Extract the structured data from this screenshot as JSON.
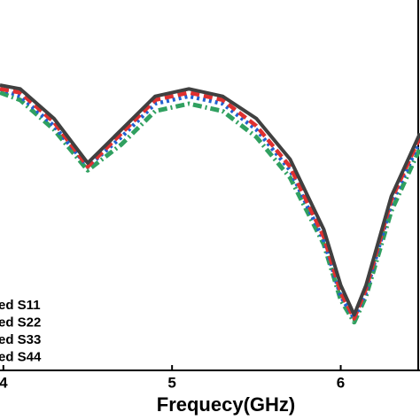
{
  "chart_data": {
    "type": "line",
    "x_label": "Frequecy(GHz)",
    "xlim": [
      3.98,
      6.47
    ],
    "xticks": [
      4,
      5,
      6
    ],
    "ylim": [
      0,
      100
    ],
    "x": [
      3.98,
      4.1,
      4.3,
      4.5,
      4.7,
      4.9,
      5.1,
      5.3,
      5.5,
      5.7,
      5.9,
      6.0,
      6.08,
      6.15,
      6.3,
      6.47
    ],
    "series": [
      {
        "name": "ed S11",
        "color": "#404040",
        "values": [
          77,
          76,
          68,
          56,
          65,
          74,
          76,
          74,
          68,
          57,
          38,
          23,
          15,
          23,
          47,
          64
        ]
      },
      {
        "name": "ed S22",
        "color": "#e03030",
        "values": [
          76,
          75,
          67,
          55,
          64,
          73,
          75,
          73,
          66,
          55,
          36,
          21,
          14,
          22,
          46,
          63
        ]
      },
      {
        "name": "ed S33",
        "color": "#2060d0",
        "values": [
          76,
          74,
          66,
          55,
          63,
          72,
          74,
          72,
          65,
          54,
          35,
          20,
          14,
          21,
          45,
          62
        ]
      },
      {
        "name": "ed S44",
        "color": "#30a060",
        "values": [
          75,
          73,
          65,
          54,
          61,
          70,
          72,
          70,
          63,
          52,
          34,
          19,
          13,
          20,
          43,
          60
        ]
      }
    ]
  }
}
